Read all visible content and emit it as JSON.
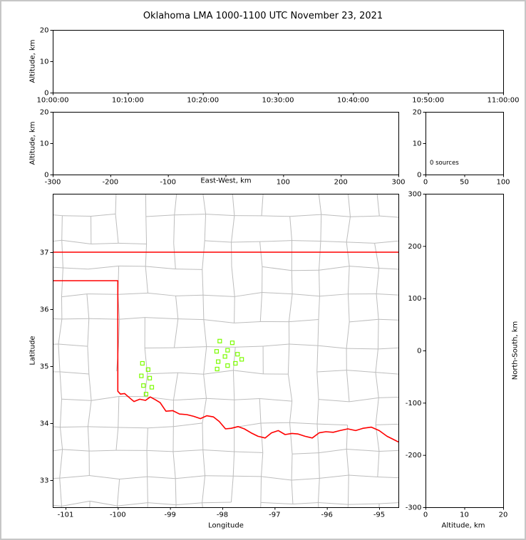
{
  "title": "Oklahoma LMA 1000-1100 UTC November 23, 2021",
  "colors": {
    "frame": "#000000",
    "page_border": "#c6c6c6",
    "state_border": "#ff0000",
    "county_lines": "#bdbdbd",
    "station_marker": "#7cfc00"
  },
  "chart_data": [
    {
      "id": "altitude_vs_time",
      "type": "scatter",
      "ylabel": "Altitude, km",
      "ylim": [
        0,
        20
      ],
      "yticks": [
        0,
        10,
        20
      ],
      "xtick_labels": [
        "10:00:00",
        "10:10:00",
        "10:20:00",
        "10:30:00",
        "10:40:00",
        "10:50:00",
        "11:00:00"
      ],
      "points": []
    },
    {
      "id": "altitude_vs_eastwest",
      "type": "scatter",
      "xlabel": "East-West, km",
      "ylabel": "Altitude, km",
      "xlim": [
        -300,
        300
      ],
      "xticks": [
        -300,
        -200,
        -100,
        0,
        100,
        200,
        300
      ],
      "xtick_labels": [
        "-300",
        "-200",
        "-100",
        "",
        "100",
        "200",
        "300"
      ],
      "ylim": [
        0,
        20
      ],
      "yticks": [
        0,
        10,
        20
      ],
      "points": []
    },
    {
      "id": "source_count_histogram",
      "type": "histogram",
      "annotation": "0 sources",
      "xlim": [
        0,
        100
      ],
      "xticks": [
        0,
        50,
        100
      ],
      "ylim": [
        0,
        20
      ],
      "yticks": [
        0,
        10,
        20
      ],
      "points": []
    },
    {
      "id": "plan_view_map",
      "type": "scatter",
      "xlabel": "Longitude",
      "ylabel": "Latitude",
      "xlim": [
        -101.245,
        -94.632
      ],
      "xticks": [
        -101,
        -100,
        -99,
        -98,
        -97,
        -96,
        -95
      ],
      "ylim": [
        32.525,
        38.025
      ],
      "yticks": [
        33,
        34,
        35,
        36,
        37
      ],
      "stations": [
        [
          -98.05,
          35.44
        ],
        [
          -97.81,
          35.41
        ],
        [
          -98.11,
          35.26
        ],
        [
          -97.9,
          35.28
        ],
        [
          -97.71,
          35.21
        ],
        [
          -98.08,
          35.08
        ],
        [
          -97.95,
          35.17
        ],
        [
          -97.9,
          35.01
        ],
        [
          -98.1,
          34.95
        ],
        [
          -97.75,
          35.05
        ],
        [
          -97.63,
          35.12
        ],
        [
          -99.53,
          35.05
        ],
        [
          -99.42,
          34.94
        ],
        [
          -99.55,
          34.83
        ],
        [
          -99.39,
          34.79
        ],
        [
          -99.51,
          34.66
        ],
        [
          -99.35,
          34.63
        ],
        [
          -99.46,
          34.51
        ]
      ],
      "state_border_north": [
        [
          -101.245,
          37.0
        ],
        [
          -94.632,
          37.0
        ]
      ],
      "state_border": [
        [
          -101.245,
          36.5
        ],
        [
          -100.0,
          36.5
        ],
        [
          -100.0,
          34.56
        ],
        [
          -99.95,
          34.51
        ],
        [
          -99.87,
          34.52
        ],
        [
          -99.77,
          34.44
        ],
        [
          -99.69,
          34.38
        ],
        [
          -99.58,
          34.42
        ],
        [
          -99.47,
          34.4
        ],
        [
          -99.38,
          34.46
        ],
        [
          -99.28,
          34.41
        ],
        [
          -99.19,
          34.36
        ],
        [
          -99.08,
          34.21
        ],
        [
          -98.95,
          34.22
        ],
        [
          -98.82,
          34.16
        ],
        [
          -98.68,
          34.15
        ],
        [
          -98.55,
          34.12
        ],
        [
          -98.42,
          34.08
        ],
        [
          -98.3,
          34.13
        ],
        [
          -98.17,
          34.11
        ],
        [
          -98.06,
          34.03
        ],
        [
          -97.94,
          33.9
        ],
        [
          -97.83,
          33.91
        ],
        [
          -97.7,
          33.94
        ],
        [
          -97.58,
          33.9
        ],
        [
          -97.45,
          33.83
        ],
        [
          -97.32,
          33.77
        ],
        [
          -97.18,
          33.74
        ],
        [
          -97.06,
          33.83
        ],
        [
          -96.93,
          33.87
        ],
        [
          -96.8,
          33.8
        ],
        [
          -96.67,
          33.82
        ],
        [
          -96.55,
          33.81
        ],
        [
          -96.42,
          33.77
        ],
        [
          -96.28,
          33.74
        ],
        [
          -96.15,
          33.83
        ],
        [
          -96.02,
          33.85
        ],
        [
          -95.88,
          33.84
        ],
        [
          -95.75,
          33.87
        ],
        [
          -95.6,
          33.9
        ],
        [
          -95.45,
          33.87
        ],
        [
          -95.31,
          33.91
        ],
        [
          -95.15,
          33.93
        ],
        [
          -95.0,
          33.87
        ],
        [
          -94.85,
          33.77
        ],
        [
          -94.74,
          33.72
        ],
        [
          -94.632,
          33.67
        ]
      ],
      "county_grid": {
        "seed": 20211123,
        "lon_step": 0.55,
        "lat_step": 0.46,
        "jitter": 0.1,
        "skip": 0.15
      }
    },
    {
      "id": "altitude_vs_northsouth",
      "type": "scatter",
      "xlabel": "Altitude, km",
      "ylabel": "North-South, km",
      "xlim": [
        0,
        20
      ],
      "xticks": [
        0,
        10,
        20
      ],
      "ylim": [
        -300,
        300
      ],
      "yticks": [
        -300,
        -200,
        -100,
        0,
        100,
        200,
        300
      ],
      "points": []
    }
  ]
}
